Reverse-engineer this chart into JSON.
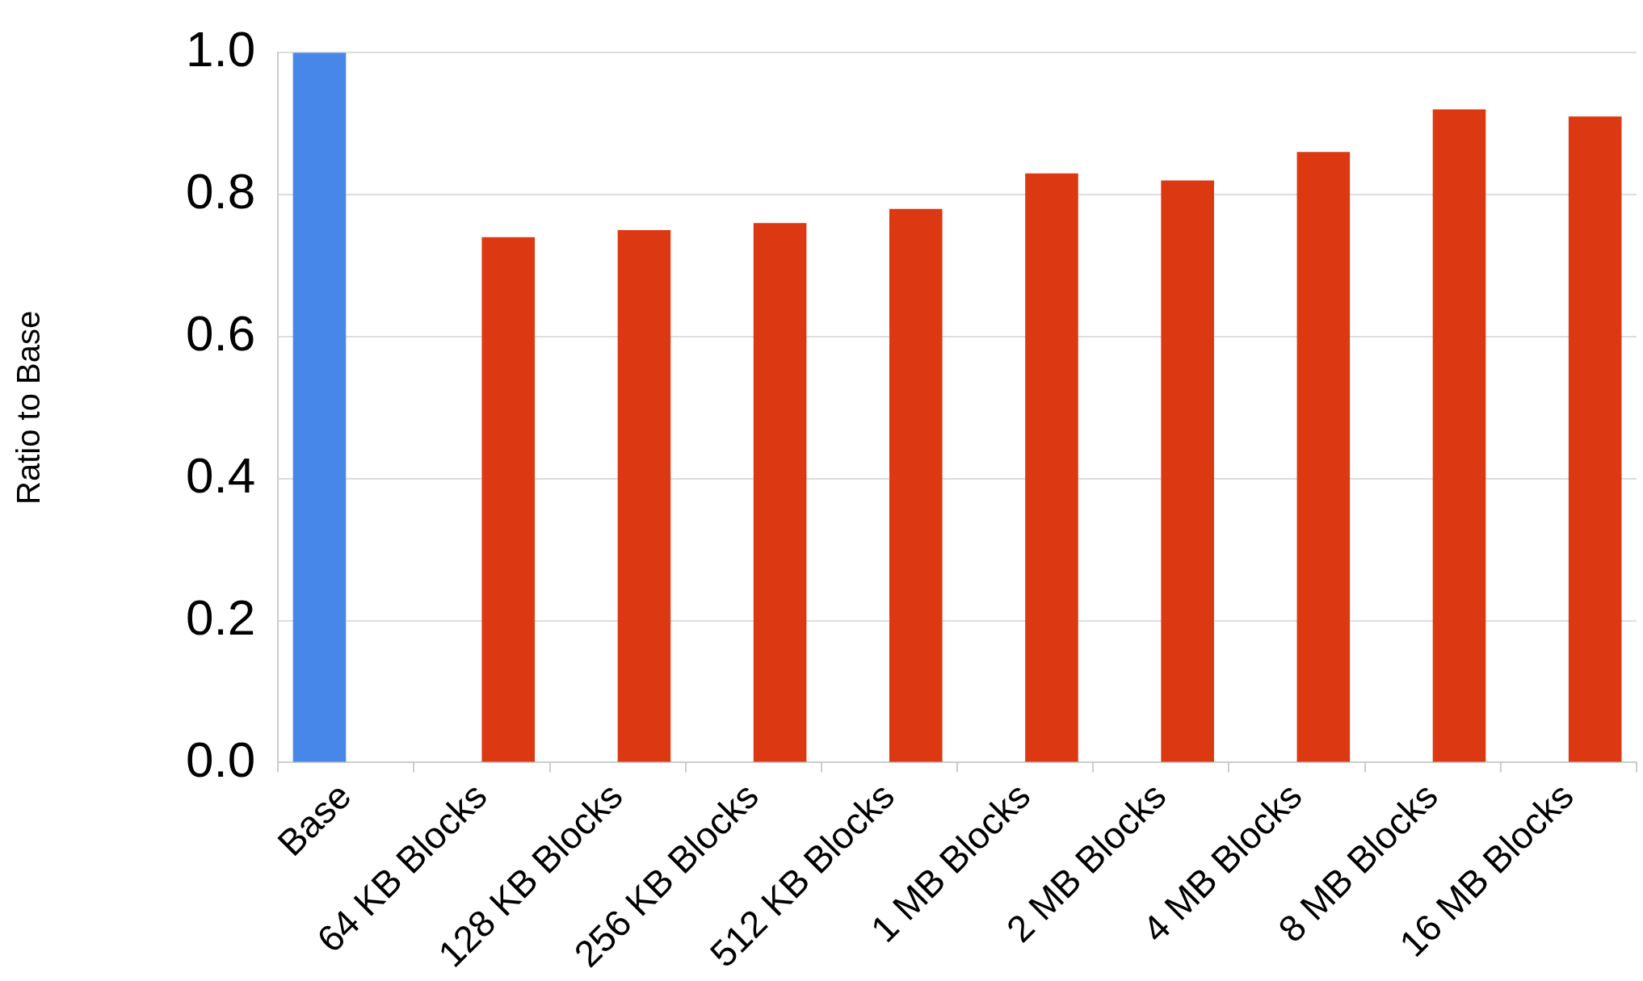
{
  "chart_data": {
    "type": "bar",
    "ylabel": "Ratio to Base",
    "categories": [
      "Base",
      "64 KB Blocks",
      "128 KB Blocks",
      "256 KB Blocks",
      "512 KB Blocks",
      "1 MB Blocks",
      "2 MB Blocks",
      "4 MB Blocks",
      "8 MB Blocks",
      "16 MB Blocks"
    ],
    "series": [
      {
        "color": "#4787ea",
        "values": [
          1.0,
          null,
          null,
          null,
          null,
          null,
          null,
          null,
          null,
          null
        ]
      },
      {
        "color": "#dc3912",
        "values": [
          null,
          0.74,
          0.75,
          0.76,
          0.78,
          0.83,
          0.82,
          0.86,
          0.92,
          0.91
        ]
      }
    ],
    "ylim": [
      0,
      1
    ],
    "yticks": [
      {
        "value": 0,
        "label": "0.0"
      },
      {
        "value": 0.2,
        "label": "0.2"
      },
      {
        "value": 0.4,
        "label": "0.4"
      },
      {
        "value": 0.6,
        "label": "0.6"
      },
      {
        "value": 0.8,
        "label": "0.8"
      },
      {
        "value": 1,
        "label": "1.0"
      }
    ],
    "grid": "y",
    "legend": false
  }
}
